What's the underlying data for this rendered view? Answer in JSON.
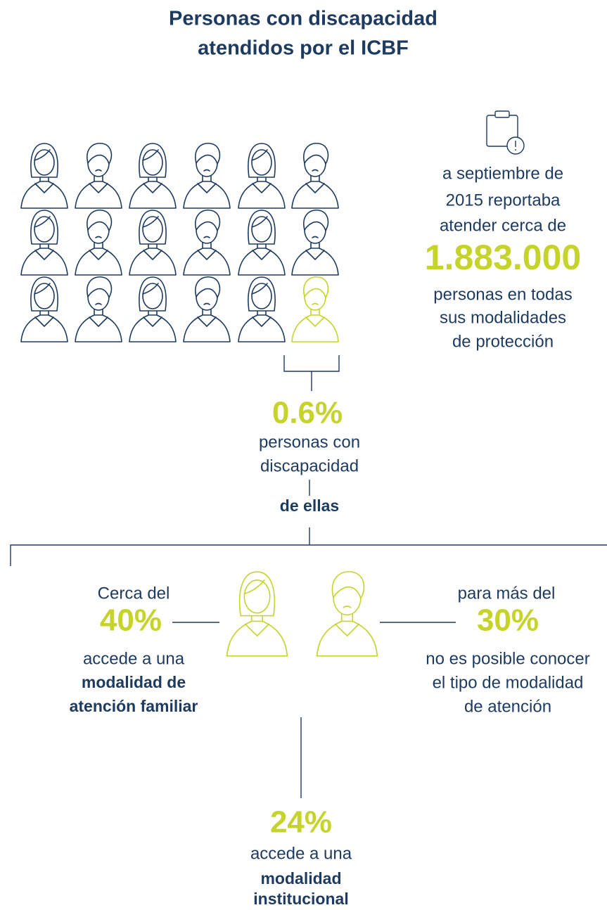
{
  "title": [
    "Personas con discapacidad",
    "atendidos por el ICBF"
  ],
  "report": {
    "intro": [
      "a septiembre de",
      "2015 reportaba",
      "atender cerca de"
    ],
    "total": "1.883.000",
    "outro": [
      "personas en todas",
      "sus modalidades",
      "de protección"
    ]
  },
  "share": {
    "value": "0.6%",
    "label": [
      "personas con",
      "discapacidad"
    ],
    "connector": "de ellas"
  },
  "familiar": {
    "intro": "Cerca del",
    "value": "40%",
    "text": "accede a una",
    "emphasis": [
      "modalidad de",
      "atención familiar"
    ]
  },
  "unknown": {
    "intro": "para más del",
    "value": "30%",
    "text": [
      "no es posible conocer",
      "el tipo de modalidad",
      "de atención"
    ]
  },
  "institutional": {
    "value": "24%",
    "text": "accede a una",
    "emphasis": [
      "modalidad",
      "institucional"
    ]
  }
}
